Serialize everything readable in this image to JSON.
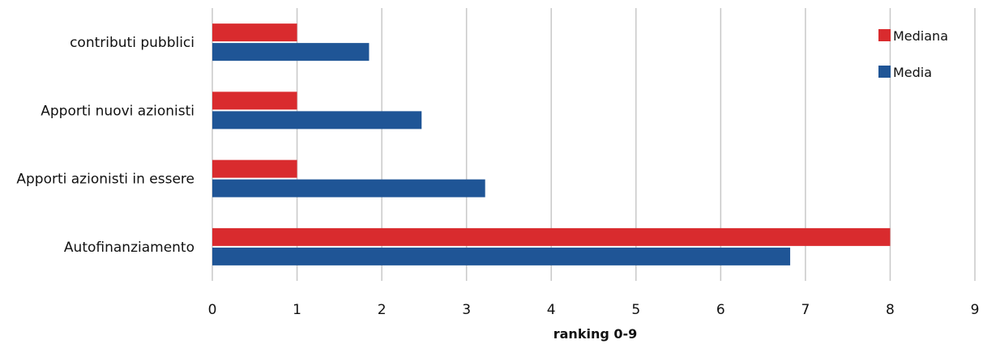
{
  "chart_data": {
    "type": "bar",
    "orientation": "horizontal",
    "categories": [
      "contributi pubblici",
      "Apporti nuovi azionisti",
      "Apporti azionisti in essere",
      "Autofinanziamento"
    ],
    "series": [
      {
        "name": "Mediana",
        "values": [
          1,
          1,
          1,
          8
        ],
        "color": "#d92b2e"
      },
      {
        "name": "Media",
        "values": [
          1.85,
          2.47,
          3.22,
          6.82
        ],
        "color": "#1f5596"
      }
    ],
    "xlabel": "ranking 0-9",
    "ylabel": "",
    "title": "",
    "xlim": [
      0,
      9
    ],
    "xticks": [
      "0",
      "1",
      "2",
      "3",
      "4",
      "5",
      "6",
      "7",
      "8",
      "9"
    ],
    "grid": true,
    "legend_position": "top-right",
    "grid_color": "#c8c8c8"
  }
}
